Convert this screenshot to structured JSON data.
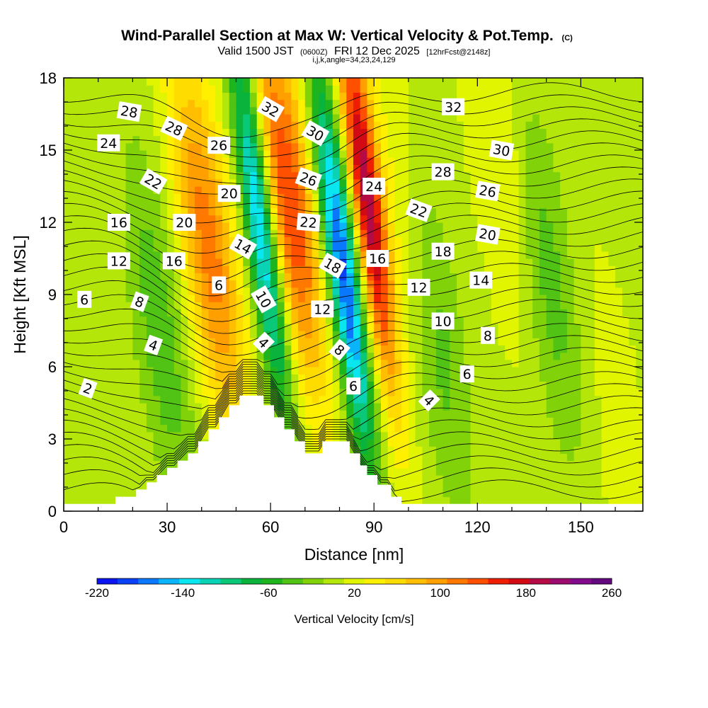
{
  "chart_data": {
    "type": "heatmap",
    "title": "Wind-Parallel Section at Max W: Vertical Velocity & Pot.Temp.",
    "title_mark": "(C)",
    "subtitle_parts": [
      "Valid 1500 JST",
      "(0600Z)",
      "FRI 12 Dec 2025",
      "[12hrFcst@2148z]"
    ],
    "subtitle2": "i,j,k,angle=34,23,24,129",
    "xlabel": "Distance [nm]",
    "ylabel": "Height [Kft MSL]",
    "xlim": [
      0,
      168
    ],
    "ylim": [
      0,
      18
    ],
    "xticks": [
      0,
      30,
      60,
      90,
      120,
      150
    ],
    "yticks": [
      0,
      3,
      6,
      9,
      12,
      15,
      18
    ],
    "colorbar": {
      "label": "Vertical Velocity [cm/s]",
      "min": -220,
      "max": 260,
      "step": 20,
      "tick_labels": [
        "-220",
        "-140",
        "-60",
        "20",
        "100",
        "180",
        "260"
      ],
      "colors": [
        "#0a14f0",
        "#0a40f6",
        "#0a78fa",
        "#0ab4fa",
        "#0ae6f0",
        "#0ad2b4",
        "#0ac878",
        "#0ab43c",
        "#1eb41e",
        "#50c314",
        "#82d20a",
        "#b4e60a",
        "#e1f500",
        "#fff000",
        "#ffdc00",
        "#ffbe00",
        "#ffa000",
        "#ff7800",
        "#ff5000",
        "#f01e00",
        "#d20a14",
        "#b40a46",
        "#9b0a6e",
        "#820a8c",
        "#64087d"
      ]
    },
    "vertical_velocity_features": [
      {
        "x": 28,
        "z": 7.5,
        "w": -50
      },
      {
        "x": 42,
        "z": 11,
        "w": 110
      },
      {
        "x": 57,
        "z": 12,
        "w": -180
      },
      {
        "x": 65,
        "z": 13,
        "w": 140
      },
      {
        "x": 81,
        "z": 10,
        "w": -200
      },
      {
        "x": 88,
        "z": 13,
        "w": 190
      },
      {
        "x": 100,
        "z": 12,
        "w": 40
      },
      {
        "x": 107,
        "z": 8,
        "w": -60
      },
      {
        "x": 128,
        "z": 15,
        "w": 30
      },
      {
        "x": 140,
        "z": 10,
        "w": -50
      },
      {
        "x": 160,
        "z": 3,
        "w": 10
      }
    ],
    "terrain": [
      [
        0,
        0.3
      ],
      [
        14,
        0.3
      ],
      [
        15,
        0.6
      ],
      [
        20,
        0.6
      ],
      [
        21,
        0.9
      ],
      [
        23,
        0.9
      ],
      [
        24,
        1.2
      ],
      [
        26,
        1.2
      ],
      [
        27,
        1.5
      ],
      [
        29,
        1.5
      ],
      [
        30,
        1.8
      ],
      [
        32,
        1.8
      ],
      [
        33,
        2.1
      ],
      [
        35,
        2.1
      ],
      [
        36,
        2.4
      ],
      [
        38,
        2.4
      ],
      [
        39,
        2.9
      ],
      [
        41,
        2.9
      ],
      [
        42,
        3.4
      ],
      [
        44,
        3.4
      ],
      [
        45,
        3.9
      ],
      [
        47,
        3.9
      ],
      [
        48,
        4.4
      ],
      [
        50,
        4.4
      ],
      [
        51,
        4.8
      ],
      [
        57,
        4.8
      ],
      [
        58,
        4.4
      ],
      [
        60,
        4.4
      ],
      [
        61,
        3.9
      ],
      [
        63,
        3.9
      ],
      [
        64,
        3.4
      ],
      [
        66,
        3.4
      ],
      [
        67,
        2.9
      ],
      [
        69,
        2.9
      ],
      [
        70,
        2.4
      ],
      [
        74,
        2.4
      ],
      [
        75,
        2.9
      ],
      [
        82,
        2.9
      ],
      [
        83,
        2.4
      ],
      [
        85,
        2.4
      ],
      [
        86,
        1.9
      ],
      [
        87,
        1.9
      ],
      [
        88,
        1.5
      ],
      [
        90,
        1.5
      ],
      [
        91,
        1.1
      ],
      [
        94,
        1.1
      ],
      [
        95,
        0.6
      ],
      [
        97,
        0.6
      ],
      [
        98,
        0.3
      ],
      [
        168,
        0.3
      ]
    ],
    "theta_labels": [
      {
        "text": "28",
        "x": 19,
        "z": 16.6,
        "rot": 10
      },
      {
        "text": "24",
        "x": 13,
        "z": 15.3,
        "rot": 0
      },
      {
        "text": "28",
        "x": 32,
        "z": 15.9,
        "rot": 25
      },
      {
        "text": "26",
        "x": 45,
        "z": 15.2,
        "rot": 0
      },
      {
        "text": "22",
        "x": 26,
        "z": 13.7,
        "rot": 30
      },
      {
        "text": "32",
        "x": 60,
        "z": 16.7,
        "rot": 30
      },
      {
        "text": "30",
        "x": 73,
        "z": 15.7,
        "rot": 30
      },
      {
        "text": "26",
        "x": 71,
        "z": 13.8,
        "rot": 20
      },
      {
        "text": "20",
        "x": 48,
        "z": 13.2,
        "rot": 0
      },
      {
        "text": "16",
        "x": 16,
        "z": 12,
        "rot": 0
      },
      {
        "text": "20",
        "x": 35,
        "z": 12,
        "rot": 0
      },
      {
        "text": "22",
        "x": 71,
        "z": 12,
        "rot": 5
      },
      {
        "text": "14",
        "x": 52,
        "z": 11,
        "rot": 30
      },
      {
        "text": "24",
        "x": 90,
        "z": 13.5,
        "rot": 0
      },
      {
        "text": "32",
        "x": 113,
        "z": 16.8,
        "rot": 0
      },
      {
        "text": "30",
        "x": 127,
        "z": 15,
        "rot": 10
      },
      {
        "text": "28",
        "x": 110,
        "z": 14.1,
        "rot": 0
      },
      {
        "text": "26",
        "x": 123,
        "z": 13.3,
        "rot": 10
      },
      {
        "text": "22",
        "x": 103,
        "z": 12.5,
        "rot": 20
      },
      {
        "text": "20",
        "x": 123,
        "z": 11.5,
        "rot": 10
      },
      {
        "text": "12",
        "x": 16,
        "z": 10.4,
        "rot": 0
      },
      {
        "text": "16",
        "x": 32,
        "z": 10.4,
        "rot": 0
      },
      {
        "text": "18",
        "x": 78,
        "z": 10.2,
        "rot": 30
      },
      {
        "text": "16",
        "x": 91,
        "z": 10.5,
        "rot": 0
      },
      {
        "text": "18",
        "x": 110,
        "z": 10.8,
        "rot": 0
      },
      {
        "text": "6",
        "x": 6,
        "z": 8.8,
        "rot": 0
      },
      {
        "text": "8",
        "x": 22,
        "z": 8.7,
        "rot": 20
      },
      {
        "text": "6",
        "x": 45,
        "z": 9.4,
        "rot": 0
      },
      {
        "text": "10",
        "x": 58,
        "z": 8.8,
        "rot": 60
      },
      {
        "text": "12",
        "x": 75,
        "z": 8.4,
        "rot": 0
      },
      {
        "text": "12",
        "x": 103,
        "z": 9.3,
        "rot": 0
      },
      {
        "text": "14",
        "x": 121,
        "z": 9.6,
        "rot": 0
      },
      {
        "text": "10",
        "x": 110,
        "z": 7.9,
        "rot": 0
      },
      {
        "text": "8",
        "x": 123,
        "z": 7.3,
        "rot": 0
      },
      {
        "text": "4",
        "x": 26,
        "z": 6.9,
        "rot": 20
      },
      {
        "text": "4",
        "x": 58,
        "z": 7,
        "rot": 45
      },
      {
        "text": "8",
        "x": 80,
        "z": 6.7,
        "rot": 40
      },
      {
        "text": "6",
        "x": 117,
        "z": 5.7,
        "rot": 0
      },
      {
        "text": "2",
        "x": 7,
        "z": 5.1,
        "rot": 20
      },
      {
        "text": "6",
        "x": 84,
        "z": 5.2,
        "rot": 0
      },
      {
        "text": "4",
        "x": 106,
        "z": 4.6,
        "rot": 45
      }
    ]
  }
}
